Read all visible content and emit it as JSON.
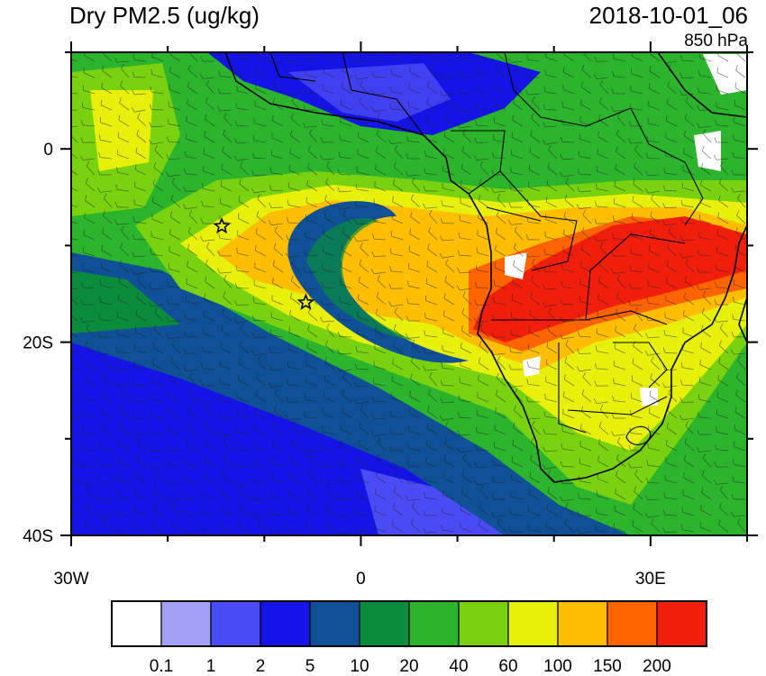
{
  "header": {
    "title": "Dry PM2.5 (ug/kg)",
    "datetime": "2018-10-01_06",
    "level": "850 hPa"
  },
  "map": {
    "lat_labels": [
      {
        "lat": 0,
        "label": "0"
      },
      {
        "lat": -20,
        "label": "20S"
      },
      {
        "lat": -40,
        "label": "40S"
      }
    ],
    "lon_labels": [
      {
        "lon": -30,
        "label": "30W"
      },
      {
        "lon": 0,
        "label": "0"
      },
      {
        "lon": 30,
        "label": "30E"
      }
    ],
    "markers": [
      {
        "name": "star-marker-1",
        "lon": -14.4,
        "lat": -8.0
      },
      {
        "name": "star-marker-2",
        "lon": -5.7,
        "lat": -15.9
      }
    ]
  },
  "colorbar": {
    "colors": [
      "#ffffff",
      "#a0a0f5",
      "#4b4bf5",
      "#1414e6",
      "#0f5096",
      "#0a8c3c",
      "#2db42d",
      "#78d20f",
      "#e6f00a",
      "#ffbe00",
      "#ff6400",
      "#f01e0a"
    ],
    "labels": [
      "0.1",
      "1",
      "2",
      "5",
      "10",
      "20",
      "40",
      "60",
      "100",
      "150",
      "200"
    ]
  }
}
